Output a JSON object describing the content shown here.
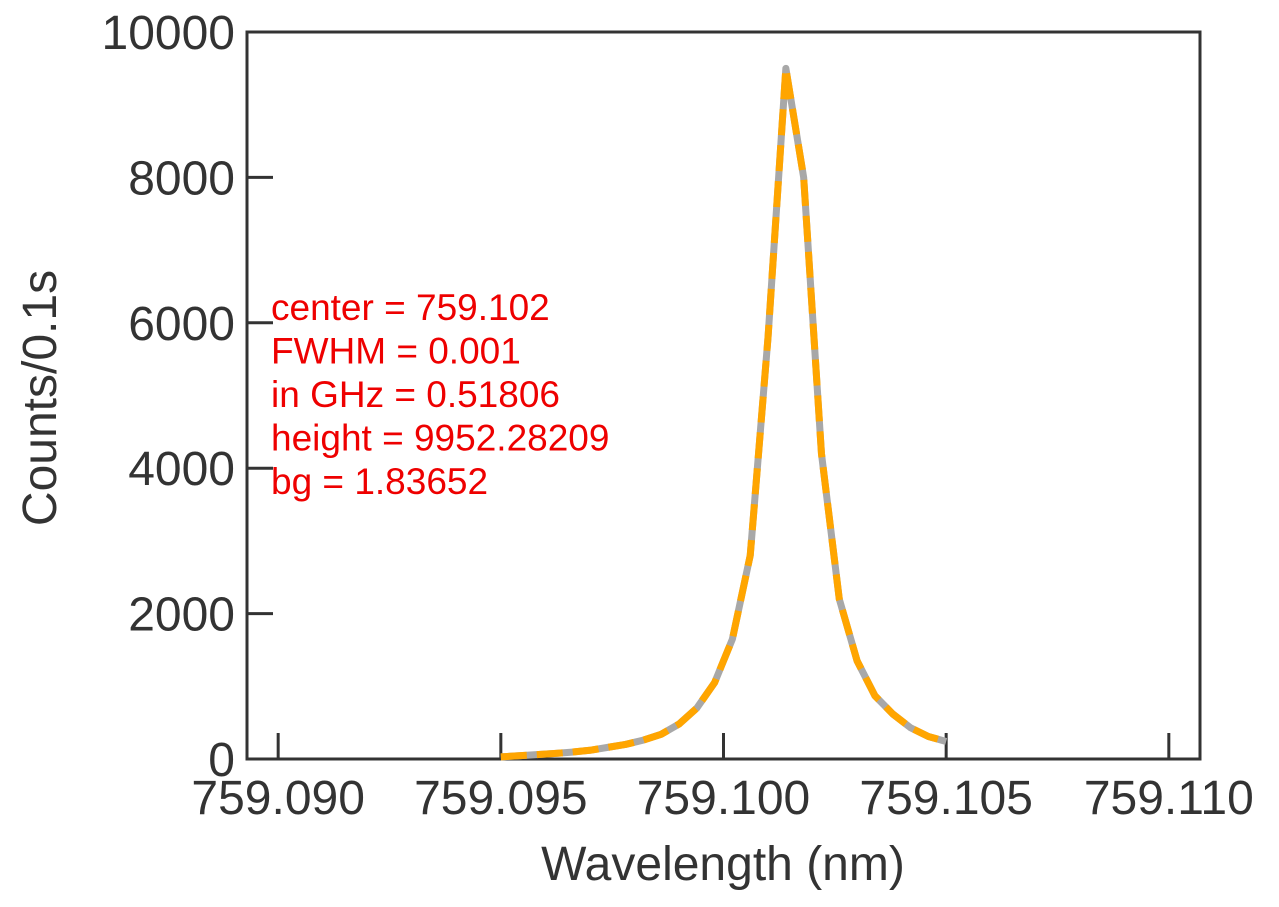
{
  "chart_data": {
    "type": "line",
    "title": "",
    "xlabel": "Wavelength (nm)",
    "ylabel": "Counts/0.1s",
    "xlim": [
      759.0893,
      759.1107
    ],
    "ylim": [
      0,
      10000
    ],
    "xticks": [
      759.09,
      759.095,
      759.1,
      759.105,
      759.11
    ],
    "xtick_labels": [
      "759.090",
      "759.095",
      "759.100",
      "759.105",
      "759.110"
    ],
    "yticks": [
      0,
      2000,
      4000,
      6000,
      8000,
      10000
    ],
    "ytick_labels": [
      "0",
      "2000",
      "4000",
      "6000",
      "8000",
      "10000"
    ],
    "grid": false,
    "series": [
      {
        "style": "solid",
        "color": "#a8a8a8",
        "x": [
          759.095,
          759.0954,
          759.0958,
          759.0962,
          759.0966,
          759.097,
          759.0974,
          759.0978,
          759.0982,
          759.0986,
          759.099,
          759.0994,
          759.0998,
          759.1002,
          759.1006,
          759.101,
          759.1014,
          759.1018,
          759.1022,
          759.1026,
          759.103,
          759.1034,
          759.1038,
          759.1042,
          759.1046,
          759.105
        ],
        "y": [
          30,
          45,
          60,
          75,
          95,
          120,
          160,
          200,
          260,
          340,
          480,
          700,
          1050,
          1650,
          2800,
          5800,
          9500,
          8000,
          4200,
          2200,
          1350,
          870,
          620,
          430,
          310,
          240
        ]
      },
      {
        "style": "dashed",
        "color": "#ffa500",
        "x": [
          759.095,
          759.0954,
          759.0958,
          759.0962,
          759.0966,
          759.097,
          759.0974,
          759.0978,
          759.0982,
          759.0986,
          759.099,
          759.0994,
          759.0998,
          759.1002,
          759.1006,
          759.101,
          759.1014,
          759.1018,
          759.1022,
          759.1026,
          759.103,
          759.1034,
          759.1038,
          759.1042,
          759.1046,
          759.105
        ],
        "y": [
          30,
          45,
          60,
          75,
          95,
          120,
          160,
          200,
          260,
          340,
          480,
          700,
          1050,
          1650,
          2800,
          5800,
          9500,
          8000,
          4200,
          2200,
          1350,
          870,
          620,
          430,
          310,
          240
        ]
      }
    ],
    "annotation": {
      "color": "#ee0000",
      "lines": [
        "center = 759.102",
        "FWHM = 0.001",
        "in GHz = 0.51806",
        "height = 9952.28209",
        "bg = 1.83652"
      ]
    }
  }
}
